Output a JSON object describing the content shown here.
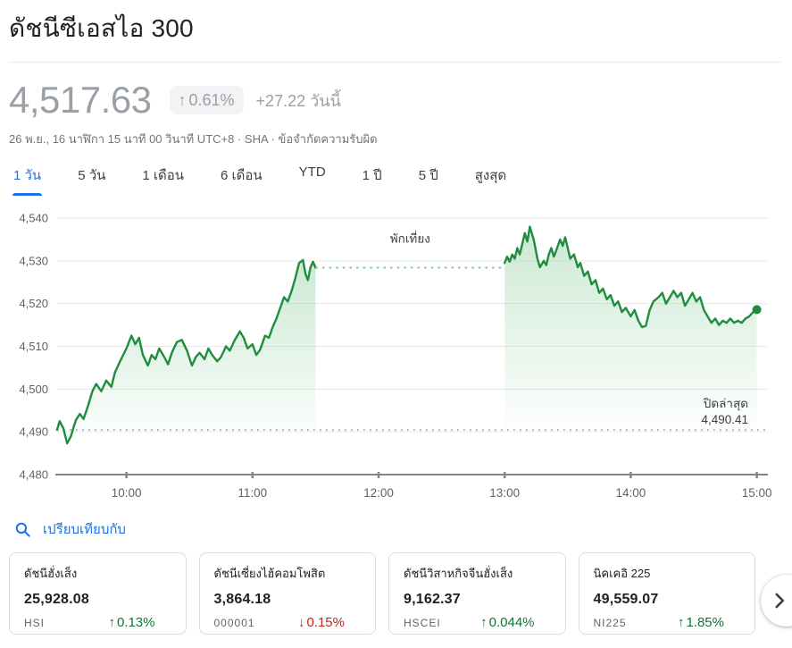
{
  "header": {
    "title": "ดัชนีซีเอสไอ 300"
  },
  "quote": {
    "price": "4,517.63",
    "change_percent_arrow": "↑",
    "change_percent": "0.61%",
    "change_absolute": "+27.22 วันนี้",
    "datetime_line": "26 พ.ย., 16 นาฬิกา 15 นาที 00 วินาที UTC+8 · SHA · ",
    "disclaimer": "ข้อจำกัดความรับผิด"
  },
  "range_tabs": [
    {
      "label": "1 วัน",
      "active": true
    },
    {
      "label": "5 วัน",
      "active": false
    },
    {
      "label": "1 เดือน",
      "active": false
    },
    {
      "label": "6 เดือน",
      "active": false
    },
    {
      "label": "YTD",
      "active": false
    },
    {
      "label": "1 ปี",
      "active": false
    },
    {
      "label": "5 ปี",
      "active": false
    },
    {
      "label": "สูงสุด",
      "active": false
    }
  ],
  "chart_data": {
    "type": "line",
    "title": "ดัชนีซีเอสไอ 300 — 1 วัน",
    "ylim": [
      4480,
      4540
    ],
    "y_ticks": [
      {
        "v": 4480,
        "label": "4,480"
      },
      {
        "v": 4490,
        "label": "4,490"
      },
      {
        "v": 4500,
        "label": "4,500"
      },
      {
        "v": 4510,
        "label": "4,510"
      },
      {
        "v": 4520,
        "label": "4,520"
      },
      {
        "v": 4530,
        "label": "4,530"
      },
      {
        "v": 4540,
        "label": "4,540"
      }
    ],
    "x_ticks": [
      {
        "hour": 10,
        "label": "10:00"
      },
      {
        "hour": 11,
        "label": "11:00"
      },
      {
        "hour": 12,
        "label": "12:00"
      },
      {
        "hour": 13,
        "label": "13:00"
      },
      {
        "hour": 14,
        "label": "14:00"
      },
      {
        "hour": 15,
        "label": "15:00"
      }
    ],
    "market_open_hour": 9.5,
    "market_close_hour": 15.0,
    "previous_close": 4490.41,
    "previous_close_label": "ปิดล่าสุด",
    "previous_close_value_label": "4,490.41",
    "lunch_break_label": "พักเที่ยง",
    "gap": {
      "from_hour": 11.5,
      "to_hour": 13.0
    },
    "line_color": "#1e8e3e",
    "fill_color_rgb": "52,168,83",
    "grid": true,
    "sessions": [
      {
        "name": "morning",
        "points": [
          [
            9.45,
            4490.5
          ],
          [
            9.47,
            4492.5
          ],
          [
            9.5,
            4490.8
          ],
          [
            9.53,
            4487.3
          ],
          [
            9.56,
            4489.0
          ],
          [
            9.58,
            4491.0
          ],
          [
            9.6,
            4492.8
          ],
          [
            9.63,
            4494.2
          ],
          [
            9.66,
            4493.0
          ],
          [
            9.7,
            4496.5
          ],
          [
            9.73,
            4499.5
          ],
          [
            9.76,
            4501.2
          ],
          [
            9.8,
            4499.5
          ],
          [
            9.84,
            4502.0
          ],
          [
            9.88,
            4500.5
          ],
          [
            9.91,
            4504.0
          ],
          [
            9.95,
            4506.5
          ],
          [
            10.0,
            4509.5
          ],
          [
            10.04,
            4512.5
          ],
          [
            10.07,
            4510.5
          ],
          [
            10.1,
            4512.0
          ],
          [
            10.13,
            4508.0
          ],
          [
            10.17,
            4505.5
          ],
          [
            10.2,
            4508.0
          ],
          [
            10.23,
            4507.0
          ],
          [
            10.26,
            4509.5
          ],
          [
            10.3,
            4507.5
          ],
          [
            10.33,
            4505.8
          ],
          [
            10.36,
            4508.5
          ],
          [
            10.4,
            4511.0
          ],
          [
            10.44,
            4511.5
          ],
          [
            10.48,
            4509.0
          ],
          [
            10.52,
            4505.5
          ],
          [
            10.55,
            4507.5
          ],
          [
            10.58,
            4508.5
          ],
          [
            10.62,
            4507.0
          ],
          [
            10.65,
            4509.5
          ],
          [
            10.68,
            4508.0
          ],
          [
            10.72,
            4506.5
          ],
          [
            10.75,
            4507.5
          ],
          [
            10.79,
            4510.0
          ],
          [
            10.82,
            4509.0
          ],
          [
            10.86,
            4511.5
          ],
          [
            10.9,
            4513.5
          ],
          [
            10.93,
            4512.0
          ],
          [
            10.96,
            4509.5
          ],
          [
            11.0,
            4510.5
          ],
          [
            11.03,
            4508.0
          ],
          [
            11.06,
            4509.2
          ],
          [
            11.1,
            4512.5
          ],
          [
            11.13,
            4512.0
          ],
          [
            11.16,
            4514.5
          ],
          [
            11.19,
            4516.5
          ],
          [
            11.22,
            4519.0
          ],
          [
            11.25,
            4521.5
          ],
          [
            11.28,
            4520.5
          ],
          [
            11.31,
            4523.0
          ],
          [
            11.34,
            4526.0
          ],
          [
            11.37,
            4529.5
          ],
          [
            11.4,
            4530.2
          ],
          [
            11.42,
            4527.0
          ],
          [
            11.44,
            4525.5
          ],
          [
            11.46,
            4528.5
          ],
          [
            11.48,
            4529.8
          ],
          [
            11.5,
            4528.4
          ]
        ]
      },
      {
        "name": "afternoon",
        "points": [
          [
            13.0,
            4529.5
          ],
          [
            13.02,
            4531.0
          ],
          [
            13.04,
            4529.8
          ],
          [
            13.06,
            4531.5
          ],
          [
            13.08,
            4530.5
          ],
          [
            13.1,
            4533.0
          ],
          [
            13.12,
            4531.5
          ],
          [
            13.14,
            4534.0
          ],
          [
            13.16,
            4536.5
          ],
          [
            13.18,
            4534.5
          ],
          [
            13.2,
            4538.0
          ],
          [
            13.23,
            4535.0
          ],
          [
            13.26,
            4530.5
          ],
          [
            13.28,
            4528.5
          ],
          [
            13.31,
            4530.0
          ],
          [
            13.33,
            4529.0
          ],
          [
            13.35,
            4531.5
          ],
          [
            13.37,
            4533.0
          ],
          [
            13.39,
            4531.0
          ],
          [
            13.41,
            4532.5
          ],
          [
            13.44,
            4535.0
          ],
          [
            13.46,
            4533.5
          ],
          [
            13.48,
            4535.5
          ],
          [
            13.5,
            4533.0
          ],
          [
            13.52,
            4530.5
          ],
          [
            13.55,
            4531.5
          ],
          [
            13.58,
            4528.5
          ],
          [
            13.6,
            4529.5
          ],
          [
            13.63,
            4526.5
          ],
          [
            13.66,
            4527.5
          ],
          [
            13.69,
            4524.5
          ],
          [
            13.72,
            4525.5
          ],
          [
            13.75,
            4522.5
          ],
          [
            13.78,
            4523.5
          ],
          [
            13.81,
            4521.0
          ],
          [
            13.84,
            4522.0
          ],
          [
            13.87,
            4519.5
          ],
          [
            13.9,
            4520.5
          ],
          [
            13.93,
            4518.0
          ],
          [
            13.96,
            4519.0
          ],
          [
            14.0,
            4517.0
          ],
          [
            14.03,
            4518.5
          ],
          [
            14.06,
            4516.0
          ],
          [
            14.09,
            4514.5
          ],
          [
            14.12,
            4514.8
          ],
          [
            14.15,
            4518.5
          ],
          [
            14.18,
            4520.5
          ],
          [
            14.22,
            4521.5
          ],
          [
            14.25,
            4522.5
          ],
          [
            14.28,
            4520.0
          ],
          [
            14.31,
            4521.5
          ],
          [
            14.34,
            4523.0
          ],
          [
            14.37,
            4521.5
          ],
          [
            14.4,
            4522.5
          ],
          [
            14.43,
            4519.5
          ],
          [
            14.46,
            4521.0
          ],
          [
            14.49,
            4522.5
          ],
          [
            14.52,
            4520.5
          ],
          [
            14.55,
            4521.5
          ],
          [
            14.58,
            4518.5
          ],
          [
            14.61,
            4517.0
          ],
          [
            14.64,
            4515.5
          ],
          [
            14.67,
            4516.5
          ],
          [
            14.7,
            4515.0
          ],
          [
            14.73,
            4516.0
          ],
          [
            14.76,
            4515.5
          ],
          [
            14.79,
            4516.5
          ],
          [
            14.82,
            4515.5
          ],
          [
            14.85,
            4516.0
          ],
          [
            14.88,
            4515.5
          ],
          [
            14.91,
            4516.5
          ],
          [
            14.94,
            4517.0
          ],
          [
            14.97,
            4518.0
          ],
          [
            15.0,
            4518.6
          ]
        ]
      }
    ]
  },
  "compare": {
    "label": "เปรียบเทียบกับ"
  },
  "related": [
    {
      "name": "ดัชนีฮั่งเส็ง",
      "value": "25,928.08",
      "ticker": "HSI",
      "arrow": "↑",
      "change": "0.13%",
      "direction": "up"
    },
    {
      "name": "ดัชนีเซี่ยงไฮ้คอมโพสิต",
      "value": "3,864.18",
      "ticker": "000001",
      "arrow": "↓",
      "change": "0.15%",
      "direction": "down"
    },
    {
      "name": "ดัชนีวิสาหกิจจีนฮั่งเส็ง",
      "value": "9,162.37",
      "ticker": "HSCEI",
      "arrow": "↑",
      "change": "0.044%",
      "direction": "up"
    },
    {
      "name": "นิคเคอิ 225",
      "value": "49,559.07",
      "ticker": "NI225",
      "arrow": "↑",
      "change": "1.85%",
      "direction": "up"
    }
  ],
  "colors": {
    "accent_blue": "#1a73e8",
    "up_green": "#137333",
    "down_red": "#c5221f",
    "muted_gray": "#9aa0a6"
  }
}
